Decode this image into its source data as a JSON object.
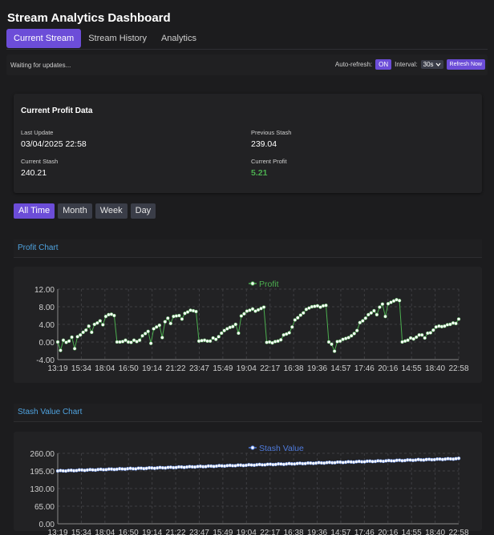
{
  "app": {
    "title": "Stream Analytics Dashboard"
  },
  "tabs": [
    {
      "label": "Current Stream",
      "active": true
    },
    {
      "label": "Stream History",
      "active": false
    },
    {
      "label": "Analytics",
      "active": false
    }
  ],
  "status": {
    "text": "Waiting for updates...",
    "auto_refresh_label": "Auto-refresh:",
    "auto_refresh_value": "ON",
    "interval_label": "Interval:",
    "interval_value": "30s",
    "refresh_button": "Refresh Now"
  },
  "profit_card": {
    "title": "Current Profit Data",
    "last_update_label": "Last Update",
    "last_update_value": "03/04/2025 22:58",
    "previous_stash_label": "Previous Stash",
    "previous_stash_value": "239.04",
    "current_stash_label": "Current Stash",
    "current_stash_value": "240.21",
    "current_profit_label": "Current Profit",
    "current_profit_value": "5.21",
    "colors": {
      "profit_positive": "#4caf50"
    }
  },
  "range_buttons": [
    {
      "label": "All Time",
      "active": true
    },
    {
      "label": "Month",
      "active": false
    },
    {
      "label": "Week",
      "active": false
    },
    {
      "label": "Day",
      "active": false
    }
  ],
  "sections": {
    "profit": "Profit Chart",
    "stash": "Stash Value Chart"
  },
  "chart_data": [
    {
      "type": "line",
      "title": "Profit Chart",
      "legend": "Profit",
      "legend_placement": "top",
      "color": "#4caf50",
      "grid": true,
      "ylim": [
        -4,
        12
      ],
      "yticks": [
        "12.00",
        "8.00",
        "4.00",
        "0.00",
        "-4.00"
      ],
      "xtick_labels": [
        "13:19",
        "15:34",
        "18:04",
        "16:50",
        "19:14",
        "21:22",
        "23:47",
        "15:49",
        "19:04",
        "22:17",
        "16:38",
        "19:36",
        "14:57",
        "17:46",
        "20:16",
        "14:55",
        "18:40",
        "22:58"
      ],
      "series": [
        {
          "name": "Profit",
          "values": [
            0,
            -1.9,
            0.4,
            -0.1,
            0.2,
            1.1,
            -1.5,
            1.2,
            1.6,
            2.2,
            2.7,
            3.6,
            2.2,
            4.0,
            4.3,
            4.8,
            3.9,
            5.8,
            6.2,
            6.3,
            6.0,
            0,
            0,
            0.1,
            0.4,
            0,
            -0.1,
            0.4,
            0.1,
            0.4,
            1.4,
            1.9,
            2.4,
            -0.3,
            3.0,
            3.4,
            3.8,
            1.0,
            4.6,
            5.4,
            4.2,
            5.8,
            5.9,
            6.0,
            5.2,
            6.5,
            6.8,
            7.2,
            7.1,
            6.9,
            0.2,
            0.3,
            0.4,
            0.2,
            0.2,
            0.9,
            0.6,
            1.2,
            2.0,
            2.6,
            3.0,
            3.3,
            3.5,
            4.0,
            2.0,
            5.9,
            6.4,
            7.0,
            7.2,
            7.5,
            7.0,
            7.3,
            7.6,
            7.9,
            -0.1,
            0,
            -0.2,
            0.1,
            0.2,
            0.5,
            1.6,
            1.8,
            2.1,
            3.4,
            5.0,
            5.5,
            6.1,
            6.6,
            7.4,
            7.7,
            8.0,
            8.1,
            8.2,
            7.9,
            8.2,
            8.3,
            0,
            -0.5,
            -2.1,
            0.1,
            0.2,
            0.6,
            0.8,
            1.0,
            1.4,
            1.9,
            2.6,
            4.4,
            4.8,
            5.4,
            6.2,
            6.6,
            7.1,
            6.2,
            7.9,
            8.6,
            5.8,
            8.7,
            9.0,
            9.3,
            9.6,
            9.4,
            0,
            0.2,
            0.4,
            0.9,
            0.7,
            1.1,
            1.6,
            1.6,
            0.9,
            2.0,
            2.1,
            2.7,
            3.4,
            3.6,
            3.5,
            3.6,
            3.9,
            4.0,
            4.3,
            4.2,
            5.2
          ]
        }
      ]
    },
    {
      "type": "line",
      "title": "Stash Value Chart",
      "legend": "Stash Value",
      "legend_placement": "top",
      "color": "#4f7bdc",
      "grid": true,
      "ylim": [
        0,
        260
      ],
      "yticks": [
        "260.00",
        "195.00",
        "130.00",
        "65.00",
        "0.00"
      ],
      "xtick_labels": [
        "13:19",
        "15:34",
        "18:04",
        "16:50",
        "19:14",
        "21:22",
        "23:47",
        "15:49",
        "19:04",
        "22:17",
        "16:38",
        "19:36",
        "14:57",
        "17:46",
        "20:16",
        "14:55",
        "18:40",
        "22:58"
      ],
      "series": [
        {
          "name": "Stash Value",
          "start": 195,
          "end": 240.21,
          "points": 150
        }
      ]
    }
  ]
}
